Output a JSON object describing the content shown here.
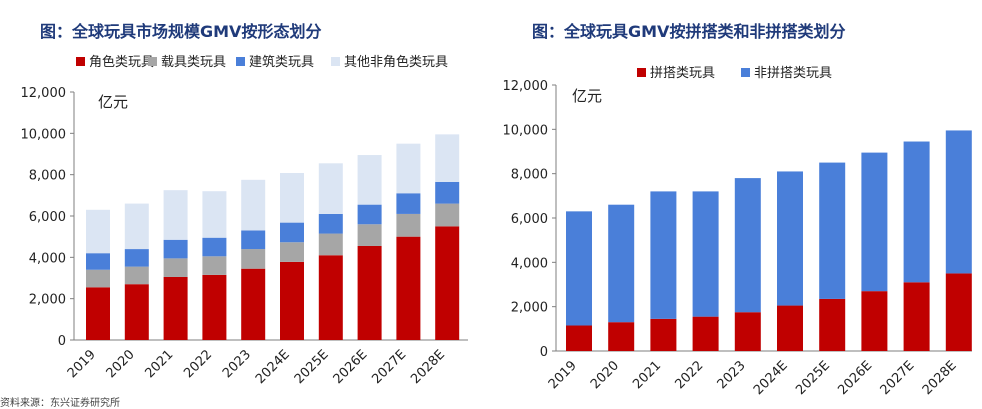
{
  "colors": {
    "title": "#1f3a7a",
    "red": "#c00000",
    "gray": "#a6a6a6",
    "blue": "#4a7fd9",
    "light": "#dbe5f3"
  },
  "footer_text": "资料来源：东兴证券研究所",
  "chart_data": [
    {
      "type": "bar",
      "stacked": true,
      "title": "图：全球玩具市场规模GMV按形态划分",
      "ylabel": "亿元",
      "categories": [
        "2019",
        "2020",
        "2021",
        "2022",
        "2023",
        "2024E",
        "2025E",
        "2026E",
        "2027E",
        "2028E"
      ],
      "yticks": [
        "0",
        "2,000",
        "4,000",
        "6,000",
        "8,000",
        "10,000",
        "12,000"
      ],
      "ylim": [
        0,
        12000
      ],
      "legend_position": "top",
      "series": [
        {
          "name": "角色类玩具",
          "color": "#c00000",
          "values": [
            2550,
            2700,
            3050,
            3150,
            3450,
            3780,
            4100,
            4550,
            5000,
            5500
          ]
        },
        {
          "name": "载具类玩具",
          "color": "#a6a6a6",
          "values": [
            850,
            850,
            900,
            900,
            950,
            950,
            1050,
            1050,
            1100,
            1100
          ]
        },
        {
          "name": "建筑类玩具",
          "color": "#4a7fd9",
          "values": [
            800,
            850,
            900,
            900,
            900,
            950,
            950,
            950,
            1000,
            1050
          ]
        },
        {
          "name": "其他非角色类玩具",
          "color": "#dbe5f3",
          "values": [
            2100,
            2200,
            2400,
            2250,
            2450,
            2400,
            2450,
            2400,
            2400,
            2300
          ]
        }
      ]
    },
    {
      "type": "bar",
      "stacked": true,
      "title": "图：全球玩具GMV按拼搭类和非拼搭类划分",
      "ylabel": "亿元",
      "categories": [
        "2019",
        "2020",
        "2021",
        "2022",
        "2023",
        "2024E",
        "2025E",
        "2026E",
        "2027E",
        "2028E"
      ],
      "yticks": [
        "0",
        "2,000",
        "4,000",
        "6,000",
        "8,000",
        "10,000",
        "12,000"
      ],
      "ylim": [
        0,
        12000
      ],
      "legend_position": "top",
      "series": [
        {
          "name": "拼搭类玩具",
          "color": "#c00000",
          "values": [
            1150,
            1300,
            1450,
            1550,
            1750,
            2050,
            2350,
            2700,
            3100,
            3500
          ]
        },
        {
          "name": "非拼搭类玩具",
          "color": "#4a7fd9",
          "values": [
            5150,
            5300,
            5750,
            5650,
            6050,
            6050,
            6150,
            6250,
            6350,
            6450
          ]
        }
      ]
    }
  ]
}
